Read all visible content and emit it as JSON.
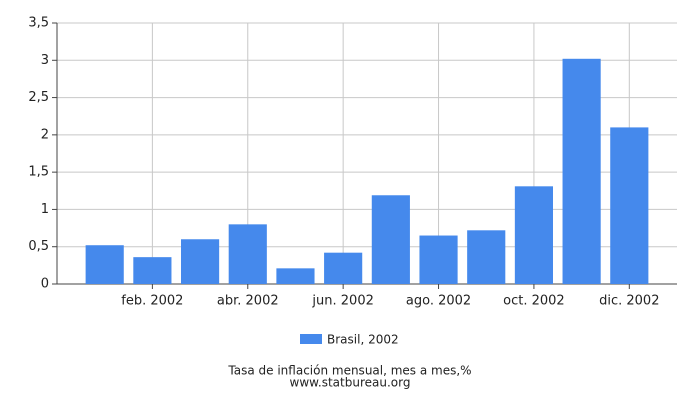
{
  "chart_data": {
    "type": "bar",
    "title": "Tasa de inflación mensual, mes a mes,%",
    "source": "www.statbureau.org",
    "categories": [
      null,
      "feb. 2002",
      null,
      "abr. 2002",
      null,
      "jun. 2002",
      null,
      "ago. 2002",
      null,
      "oct. 2002",
      null,
      "dic. 2002"
    ],
    "series": [
      {
        "name": "Brasil, 2002",
        "color": "#4589ec",
        "values": [
          0.52,
          0.36,
          0.6,
          0.8,
          0.21,
          0.42,
          1.19,
          0.65,
          0.72,
          1.31,
          3.02,
          2.1
        ]
      }
    ],
    "ylim": [
      0,
      3.5
    ],
    "yticks": [
      0,
      {
        "value": 0.5,
        "label": "0,5"
      },
      1,
      {
        "value": 1.5,
        "label": "1,5"
      },
      2,
      {
        "value": 2.5,
        "label": "2,5"
      },
      3,
      {
        "value": 3.5,
        "label": "3,5"
      }
    ],
    "grid": true
  }
}
